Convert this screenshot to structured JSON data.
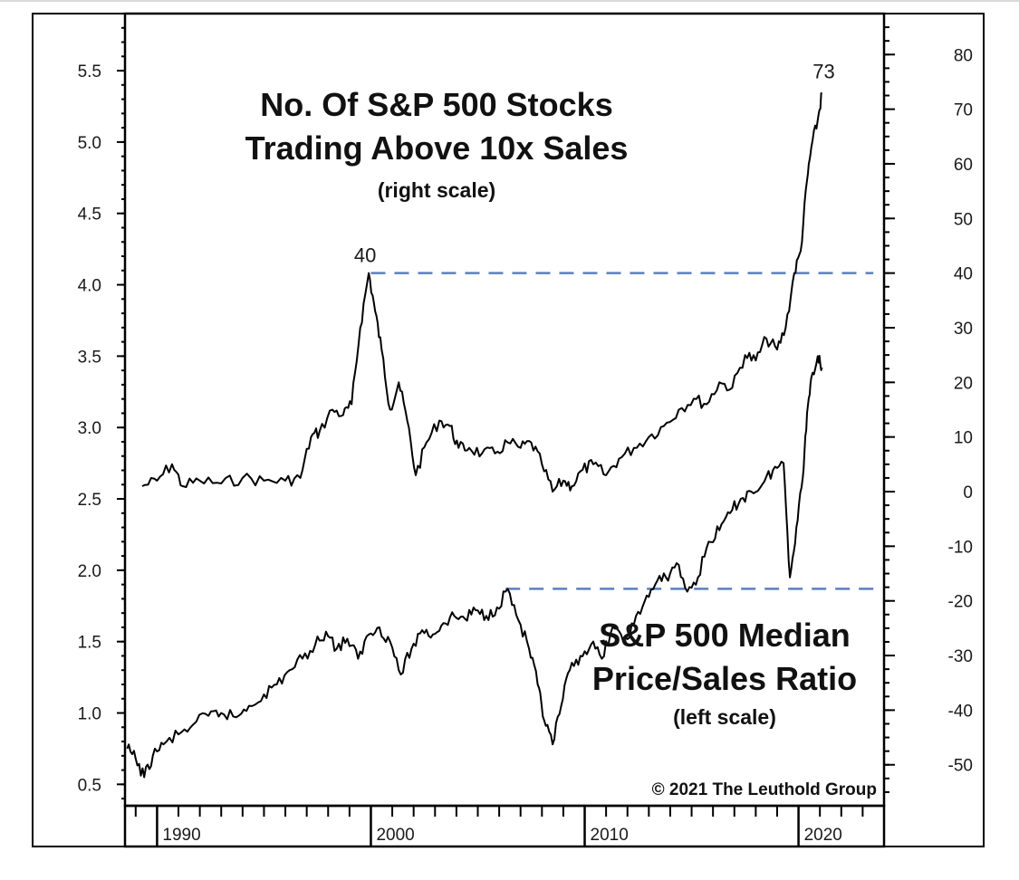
{
  "chart_data": {
    "type": "line",
    "copyright": "© 2021  The Leuthold Group",
    "x_axis": {
      "range": [
        1988.5,
        2024
      ],
      "tick_labels": [
        "1990",
        "2000",
        "2010",
        "2020"
      ],
      "tick_values": [
        1990,
        2000,
        2010,
        2020
      ]
    },
    "left_axis": {
      "range": [
        0.35,
        5.9
      ],
      "tick_labels": [
        "0.5",
        "1.0",
        "1.5",
        "2.0",
        "2.5",
        "3.0",
        "3.5",
        "4.0",
        "4.5",
        "5.0",
        "5.5"
      ],
      "tick_values": [
        0.5,
        1.0,
        1.5,
        2.0,
        2.5,
        3.0,
        3.5,
        4.0,
        4.5,
        5.0,
        5.5
      ]
    },
    "right_axis": {
      "range": [
        -57.5,
        87.5
      ],
      "tick_labels": [
        "-50",
        "-40",
        "-30",
        "-20",
        "-10",
        "0",
        "10",
        "20",
        "30",
        "40",
        "50",
        "60",
        "70",
        "80"
      ],
      "tick_values": [
        -50,
        -40,
        -30,
        -20,
        -10,
        0,
        10,
        20,
        30,
        40,
        50,
        60,
        70,
        80
      ]
    },
    "series": [
      {
        "title_lines": [
          "No. Of S&P 500 Stocks",
          "Trading Above 10x Sales"
        ],
        "scale_note": "(right scale)",
        "axis": "right",
        "color": "#000000",
        "peak_label": "40",
        "end_label": "73",
        "x": [
          1989.3,
          1990.0,
          1990.7,
          1991.2,
          1992.0,
          1993.0,
          1994.0,
          1995.0,
          1996.0,
          1996.7,
          1997.2,
          1997.6,
          1998.2,
          1998.7,
          1999.1,
          1999.5,
          1999.9,
          2000.2,
          2000.5,
          2000.9,
          2001.3,
          2001.7,
          2002.1,
          2002.6,
          2003.2,
          2003.7,
          2004.1,
          2004.6,
          2005.2,
          2005.8,
          2006.4,
          2007.0,
          2007.5,
          2008.0,
          2008.5,
          2009.0,
          2009.4,
          2009.9,
          2010.4,
          2011.0,
          2011.6,
          2012.3,
          2013.0,
          2013.7,
          2014.4,
          2015.1,
          2015.7,
          2016.3,
          2016.9,
          2017.5,
          2018.0,
          2018.5,
          2019.0,
          2019.4,
          2019.8,
          2020.1,
          2020.4,
          2020.6,
          2020.9,
          2021.1
        ],
        "values": [
          1,
          2,
          5,
          1,
          2,
          1.5,
          2.5,
          2,
          2,
          2.5,
          10,
          11,
          15,
          14,
          16,
          30,
          40,
          33,
          26,
          15,
          20,
          13,
          3,
          9,
          13,
          12,
          8,
          8,
          7,
          7,
          9,
          8,
          9,
          5,
          0,
          2,
          1,
          4,
          5,
          3,
          6,
          8,
          10,
          12,
          15,
          17,
          16,
          20,
          19,
          25,
          24,
          28,
          26,
          30,
          40,
          44,
          57,
          63,
          68,
          73
        ]
      },
      {
        "title_lines": [
          "S&P 500 Median",
          "Price/Sales Ratio"
        ],
        "scale_note": "(left scale)",
        "axis": "left",
        "color": "#000000",
        "x": [
          1988.6,
          1989.0,
          1989.4,
          1989.8,
          1990.3,
          1991.0,
          1991.7,
          1992.4,
          1993.0,
          1993.7,
          1994.3,
          1995.0,
          1995.6,
          1996.2,
          1996.8,
          1997.4,
          1997.9,
          1998.4,
          1998.9,
          1999.4,
          1999.9,
          2000.4,
          2000.9,
          2001.4,
          2001.9,
          2002.4,
          2002.9,
          2003.4,
          2003.9,
          2004.4,
          2004.9,
          2005.4,
          2005.9,
          2006.4,
          2006.9,
          2007.4,
          2007.8,
          2008.1,
          2008.5,
          2008.9,
          2009.3,
          2009.8,
          2010.3,
          2010.8,
          2011.3,
          2011.8,
          2012.3,
          2012.8,
          2013.3,
          2013.8,
          2014.3,
          2014.8,
          2015.3,
          2015.8,
          2016.3,
          2016.8,
          2017.3,
          2017.8,
          2018.3,
          2018.8,
          2019.3,
          2019.6,
          2019.9,
          2020.2,
          2020.4,
          2020.6,
          2020.9,
          2021.1
        ],
        "values": [
          0.75,
          0.68,
          0.55,
          0.7,
          0.78,
          0.85,
          0.92,
          0.98,
          1.0,
          0.97,
          1.05,
          1.13,
          1.2,
          1.3,
          1.38,
          1.48,
          1.57,
          1.45,
          1.52,
          1.38,
          1.55,
          1.6,
          1.5,
          1.27,
          1.45,
          1.58,
          1.55,
          1.63,
          1.68,
          1.66,
          1.72,
          1.68,
          1.74,
          1.87,
          1.65,
          1.45,
          1.2,
          0.95,
          0.78,
          1.05,
          1.3,
          1.4,
          1.48,
          1.38,
          1.6,
          1.5,
          1.62,
          1.78,
          1.9,
          1.95,
          2.05,
          1.85,
          1.95,
          2.2,
          2.28,
          2.4,
          2.5,
          2.55,
          2.6,
          2.7,
          2.75,
          1.95,
          2.3,
          2.65,
          3.1,
          3.35,
          3.5,
          3.42
        ]
      }
    ],
    "reference_lines": [
      {
        "axis": "right",
        "value": 40,
        "x_from": 2000.0,
        "x_to": 2023.5,
        "style": "dashed",
        "color": "#5b7fbf"
      },
      {
        "axis": "left",
        "value": 1.87,
        "x_from": 2006.3,
        "x_to": 2023.5,
        "style": "dashed",
        "color": "#5b7fbf"
      }
    ]
  }
}
